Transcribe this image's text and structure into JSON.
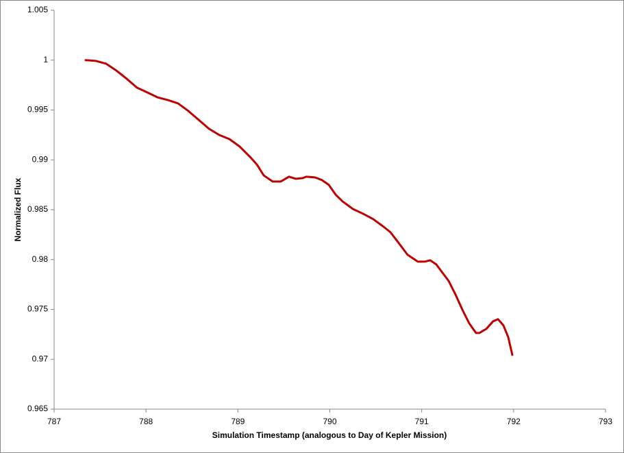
{
  "chart_data": {
    "type": "line",
    "x_label": "Simulation Timestamp (analogous to Day of Kepler Mission)",
    "y_label": "Normalized Flux",
    "xlim": [
      787,
      793
    ],
    "xticks": [
      787,
      788,
      789,
      790,
      791,
      792,
      793
    ],
    "ylim": [
      0.965,
      1.005
    ],
    "yticks": [
      0.965,
      0.97,
      0.975,
      0.98,
      0.985,
      0.99,
      0.995,
      1,
      1.005
    ],
    "grid": false,
    "series": [
      {
        "color": "#c00000",
        "x": [
          787.343,
          787.455,
          787.566,
          787.678,
          787.79,
          787.902,
          788.014,
          788.125,
          788.237,
          788.349,
          788.461,
          788.573,
          788.685,
          788.796,
          788.908,
          789.02,
          789.132,
          789.206,
          789.281,
          789.378,
          789.467,
          789.556,
          789.631,
          789.706,
          789.743,
          789.84,
          789.914,
          789.989,
          790.063,
          790.138,
          790.25,
          790.361,
          790.473,
          790.585,
          790.66,
          790.734,
          790.846,
          790.958,
          791.032,
          791.092,
          791.159,
          791.219,
          791.293,
          791.368,
          791.442,
          791.517,
          791.591,
          791.628,
          791.703,
          791.777,
          791.83,
          791.889,
          791.941,
          791.986
        ],
        "values": [
          1.0,
          0.99992,
          0.99964,
          0.99895,
          0.99813,
          0.99724,
          0.99676,
          0.99627,
          0.996,
          0.99566,
          0.9949,
          0.99401,
          0.99312,
          0.9925,
          0.99208,
          0.99133,
          0.9903,
          0.98954,
          0.98844,
          0.98783,
          0.98783,
          0.98831,
          0.9881,
          0.98817,
          0.98831,
          0.98824,
          0.98797,
          0.98749,
          0.98652,
          0.98584,
          0.98508,
          0.9846,
          0.98405,
          0.98329,
          0.98274,
          0.98185,
          0.98048,
          0.97979,
          0.97979,
          0.97993,
          0.97951,
          0.97876,
          0.97786,
          0.97649,
          0.97498,
          0.9736,
          0.97264,
          0.97264,
          0.97305,
          0.97381,
          0.97402,
          0.9734,
          0.97223,
          0.97044
        ]
      }
    ]
  }
}
